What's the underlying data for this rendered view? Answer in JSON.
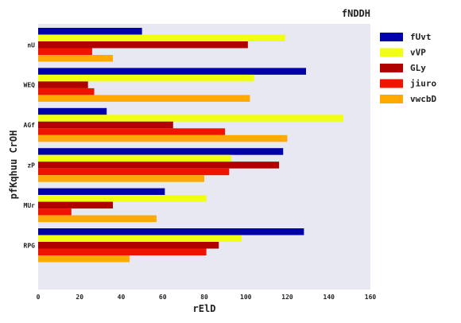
{
  "chart_data": {
    "type": "bar",
    "orientation": "horizontal",
    "title": "fNDDH",
    "xlabel": "rElD",
    "ylabel": "pfKqhuu CrOH",
    "categories": [
      "nU",
      "WEQ",
      "AGf",
      "zP",
      "MUr",
      "RPG"
    ],
    "xlim": [
      0,
      160
    ],
    "xticks": [
      0,
      20,
      40,
      60,
      80,
      100,
      120,
      140,
      160
    ],
    "grid": false,
    "legend_position": "top-right",
    "series": [
      {
        "name": "fUvt",
        "color": "#0000a8",
        "values": [
          50,
          129,
          33,
          118,
          61,
          128
        ]
      },
      {
        "name": "vVP",
        "color": "#f0ff14",
        "values": [
          119,
          104,
          147,
          93,
          81,
          98
        ]
      },
      {
        "name": "GLy",
        "color": "#b00000",
        "values": [
          101,
          24,
          65,
          116,
          36,
          87
        ]
      },
      {
        "name": "jiuro",
        "color": "#f01400",
        "values": [
          26,
          27,
          90,
          92,
          16,
          81
        ]
      },
      {
        "name": "vwcbD",
        "color": "#ffaa00",
        "values": [
          36,
          102,
          120,
          80,
          57,
          44
        ]
      }
    ]
  }
}
